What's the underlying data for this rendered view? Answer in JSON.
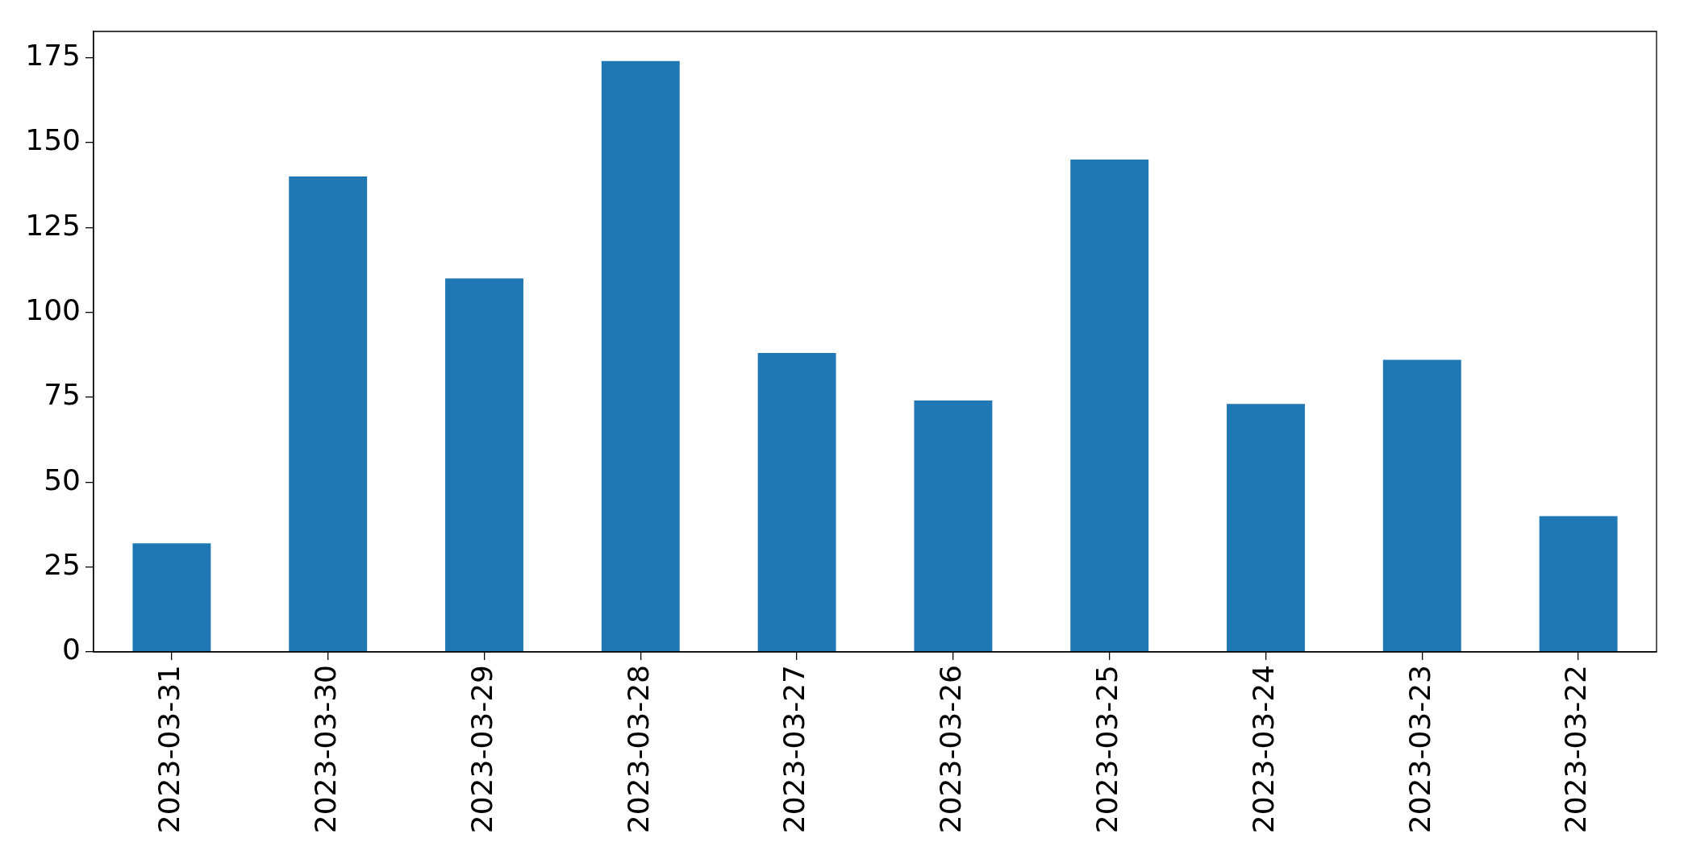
{
  "chart_data": {
    "type": "bar",
    "categories": [
      "2023-03-31",
      "2023-03-30",
      "2023-03-29",
      "2023-03-28",
      "2023-03-27",
      "2023-03-26",
      "2023-03-25",
      "2023-03-24",
      "2023-03-23",
      "2023-03-22"
    ],
    "values": [
      32,
      140,
      110,
      174,
      88,
      74,
      145,
      73,
      86,
      40
    ],
    "color": "#1f77b4",
    "ylim": [
      0,
      182.7
    ],
    "yticks": [
      0,
      25,
      50,
      75,
      100,
      125,
      150,
      175
    ]
  }
}
